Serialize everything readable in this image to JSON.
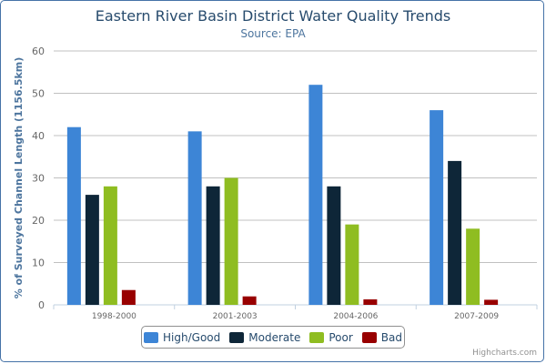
{
  "chart_data": {
    "type": "bar",
    "title": "Eastern River Basin District Water Quality Trends",
    "subtitle": "Source: EPA",
    "ylabel": "% of Surveyed Channel Length (1156.5km)",
    "ylim": [
      0,
      60
    ],
    "yticks": [
      0,
      10,
      20,
      30,
      40,
      50,
      60
    ],
    "grid": true,
    "legend_position": "bottom-center",
    "categories": [
      "1998-2000",
      "2001-2003",
      "2004-2006",
      "2007-2009"
    ],
    "series": [
      {
        "name": "High/Good",
        "color": "#3d85d6",
        "values": [
          42,
          41,
          52,
          46
        ]
      },
      {
        "name": "Moderate",
        "color": "#0e2638",
        "values": [
          26,
          28,
          28,
          34
        ]
      },
      {
        "name": "Poor",
        "color": "#8fbd21",
        "values": [
          28,
          30,
          19,
          18
        ]
      },
      {
        "name": "Bad",
        "color": "#980000",
        "values": [
          3.5,
          2,
          1.3,
          1.2
        ]
      }
    ]
  },
  "credits": "Highcharts.com"
}
